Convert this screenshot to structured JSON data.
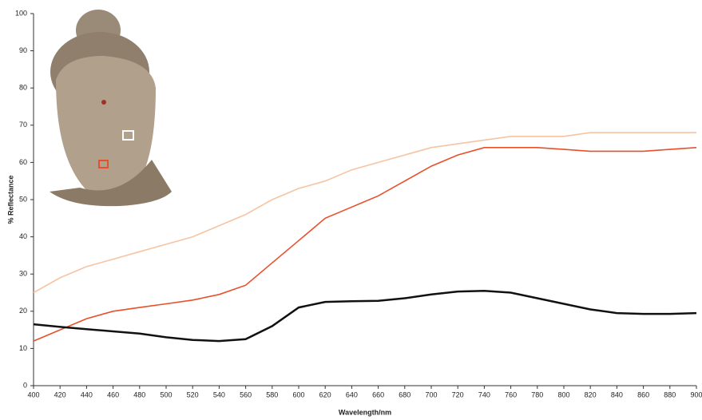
{
  "chart_data": {
    "type": "line",
    "x_label": "Wavelength/nm",
    "y_label": "% Reflectance",
    "x": [
      400,
      420,
      440,
      460,
      480,
      500,
      520,
      540,
      560,
      580,
      600,
      620,
      640,
      660,
      680,
      700,
      720,
      740,
      760,
      780,
      800,
      820,
      840,
      860,
      880,
      900
    ],
    "series": [
      {
        "color": "#f5c4a3",
        "values": [
          25,
          29,
          32,
          34,
          36,
          38,
          40,
          43,
          46,
          50,
          53,
          55,
          58,
          60,
          62,
          64,
          65,
          66,
          67,
          67,
          67,
          68,
          68,
          68,
          68,
          68
        ]
      },
      {
        "color": "#e8502a",
        "values": [
          12,
          15,
          18,
          20,
          21,
          22,
          23,
          24.5,
          27,
          33,
          39,
          45,
          48,
          51,
          55,
          59,
          62,
          64,
          64,
          64,
          63.5,
          63,
          63,
          63,
          63.5,
          64
        ]
      },
      {
        "color": "#111111",
        "values": [
          16.5,
          15.8,
          15.2,
          14.6,
          14,
          13,
          12.3,
          12,
          12.5,
          16,
          21,
          22.5,
          22.7,
          22.8,
          23.5,
          24.5,
          25.3,
          25.5,
          25,
          23.5,
          22,
          20.5,
          19.5,
          19.3,
          19.3,
          19.5
        ]
      }
    ],
    "xlim": [
      400,
      900
    ],
    "ylim": [
      0,
      100
    ],
    "xticks": [
      400,
      420,
      440,
      460,
      480,
      500,
      520,
      540,
      560,
      580,
      600,
      620,
      640,
      660,
      680,
      700,
      720,
      740,
      760,
      780,
      800,
      820,
      840,
      860,
      880,
      900
    ],
    "yticks": [
      0,
      10,
      20,
      30,
      40,
      50,
      60,
      70,
      80,
      90,
      100
    ]
  }
}
